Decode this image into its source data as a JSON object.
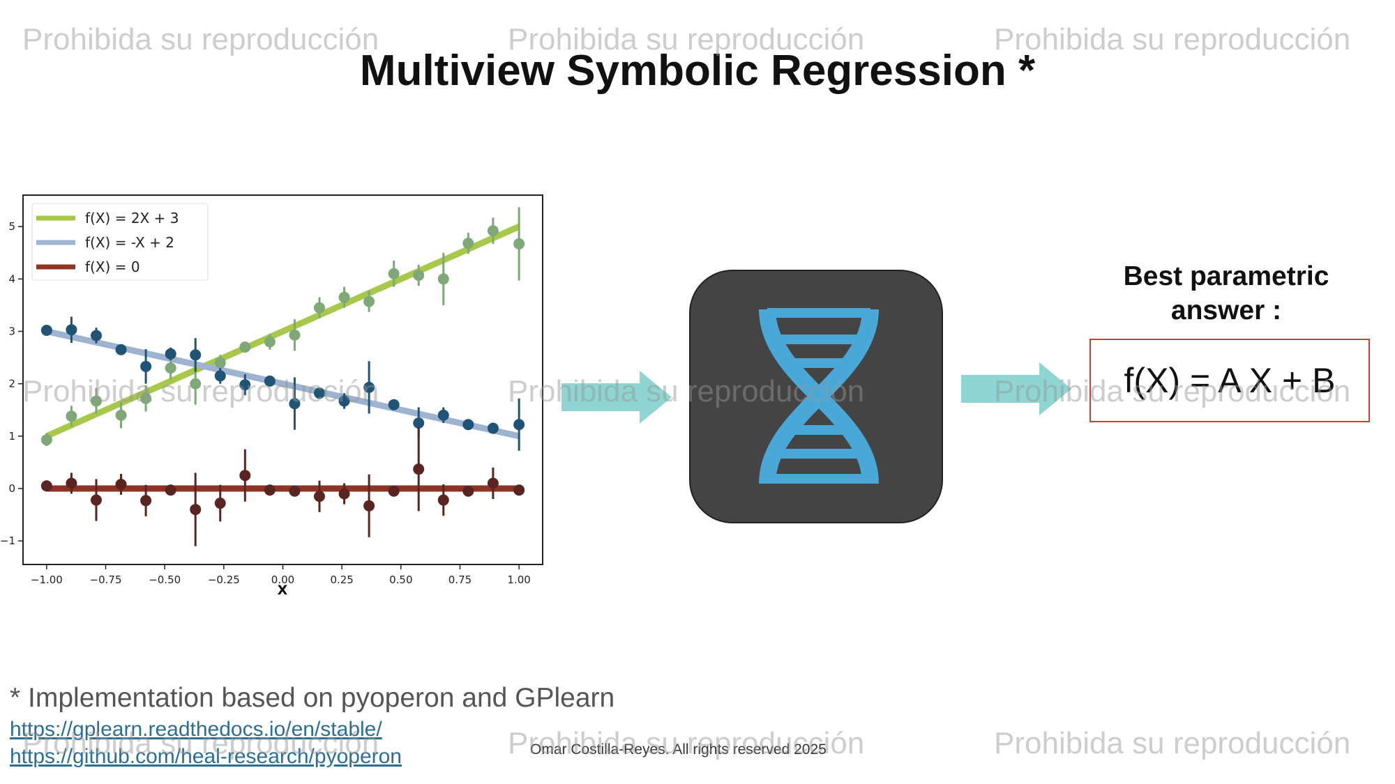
{
  "title": "Multiview Symbolic Regression *",
  "watermark": "Prohibida su reproducción",
  "chart_data": {
    "type": "line",
    "xlabel": "X",
    "ylabel": "",
    "xlim": [
      -1.1,
      1.1
    ],
    "ylim": [
      -1.45,
      5.6
    ],
    "xticks": [
      "−1.00",
      "−0.75",
      "−0.50",
      "−0.25",
      "0.00",
      "0.25",
      "0.50",
      "0.75",
      "1.00"
    ],
    "yticks": [
      "−1",
      "0",
      "1",
      "2",
      "3",
      "4",
      "5"
    ],
    "legend_position": "top-left",
    "series": [
      {
        "name": "f(X) = 2X + 3",
        "color": "#a8c84a",
        "point_color": "#7fa878",
        "line": [
          [
            -1,
            1
          ],
          [
            1,
            5
          ]
        ],
        "points": [
          {
            "x": -1.0,
            "y": 0.93,
            "err": 0.12
          },
          {
            "x": -0.895,
            "y": 1.38,
            "err": 0.2
          },
          {
            "x": -0.79,
            "y": 1.67,
            "err": 0.25
          },
          {
            "x": -0.685,
            "y": 1.4,
            "err": 0.25
          },
          {
            "x": -0.58,
            "y": 1.72,
            "err": 0.25
          },
          {
            "x": -0.475,
            "y": 2.3,
            "err": 0.22
          },
          {
            "x": -0.37,
            "y": 2.0,
            "err": 0.4
          },
          {
            "x": -0.265,
            "y": 2.4,
            "err": 0.15
          },
          {
            "x": -0.16,
            "y": 2.7,
            "err": 0.1
          },
          {
            "x": -0.055,
            "y": 2.8,
            "err": 0.15
          },
          {
            "x": 0.05,
            "y": 2.93,
            "err": 0.3
          },
          {
            "x": 0.155,
            "y": 3.45,
            "err": 0.2
          },
          {
            "x": 0.26,
            "y": 3.65,
            "err": 0.2
          },
          {
            "x": 0.365,
            "y": 3.57,
            "err": 0.2
          },
          {
            "x": 0.47,
            "y": 4.1,
            "err": 0.25
          },
          {
            "x": 0.575,
            "y": 4.07,
            "err": 0.2
          },
          {
            "x": 0.68,
            "y": 4.0,
            "err": 0.5
          },
          {
            "x": 0.785,
            "y": 4.68,
            "err": 0.2
          },
          {
            "x": 0.89,
            "y": 4.92,
            "err": 0.25
          },
          {
            "x": 1.0,
            "y": 4.67,
            "err": 0.7
          }
        ]
      },
      {
        "name": "f(X) = -X + 2",
        "color": "#9db3cf",
        "point_color": "#1f5477",
        "line": [
          [
            -1,
            3
          ],
          [
            1,
            1
          ]
        ],
        "points": [
          {
            "x": -1.0,
            "y": 3.02,
            "err": 0.08
          },
          {
            "x": -0.895,
            "y": 3.03,
            "err": 0.25
          },
          {
            "x": -0.79,
            "y": 2.92,
            "err": 0.15
          },
          {
            "x": -0.685,
            "y": 2.65,
            "err": 0.1
          },
          {
            "x": -0.58,
            "y": 2.33,
            "err": 0.33
          },
          {
            "x": -0.475,
            "y": 2.57,
            "err": 0.12
          },
          {
            "x": -0.37,
            "y": 2.55,
            "err": 0.32
          },
          {
            "x": -0.265,
            "y": 2.15,
            "err": 0.15
          },
          {
            "x": -0.16,
            "y": 1.98,
            "err": 0.2
          },
          {
            "x": -0.055,
            "y": 2.05,
            "err": 0.1
          },
          {
            "x": 0.05,
            "y": 1.62,
            "err": 0.5
          },
          {
            "x": 0.155,
            "y": 1.82,
            "err": 0.1
          },
          {
            "x": 0.26,
            "y": 1.67,
            "err": 0.15
          },
          {
            "x": 0.365,
            "y": 1.93,
            "err": 0.5
          },
          {
            "x": 0.47,
            "y": 1.6,
            "err": 0.1
          },
          {
            "x": 0.575,
            "y": 1.25,
            "err": 0.3
          },
          {
            "x": 0.68,
            "y": 1.4,
            "err": 0.15
          },
          {
            "x": 0.785,
            "y": 1.22,
            "err": 0.1
          },
          {
            "x": 0.89,
            "y": 1.15,
            "err": 0.08
          },
          {
            "x": 1.0,
            "y": 1.22,
            "err": 0.5
          }
        ]
      },
      {
        "name": "f(X) = 0",
        "color": "#8e3424",
        "point_color": "#5a2520",
        "line": [
          [
            -1,
            0
          ],
          [
            1,
            0
          ]
        ],
        "points": [
          {
            "x": -1.0,
            "y": 0.05,
            "err": 0.1
          },
          {
            "x": -0.895,
            "y": 0.1,
            "err": 0.2
          },
          {
            "x": -0.79,
            "y": -0.22,
            "err": 0.4
          },
          {
            "x": -0.685,
            "y": 0.08,
            "err": 0.2
          },
          {
            "x": -0.58,
            "y": -0.23,
            "err": 0.3
          },
          {
            "x": -0.475,
            "y": -0.03,
            "err": 0.1
          },
          {
            "x": -0.37,
            "y": -0.4,
            "err": 0.7
          },
          {
            "x": -0.265,
            "y": -0.28,
            "err": 0.35
          },
          {
            "x": -0.16,
            "y": 0.25,
            "err": 0.5
          },
          {
            "x": -0.055,
            "y": -0.03,
            "err": 0.1
          },
          {
            "x": 0.05,
            "y": -0.05,
            "err": 0.1
          },
          {
            "x": 0.155,
            "y": -0.15,
            "err": 0.3
          },
          {
            "x": 0.26,
            "y": -0.1,
            "err": 0.2
          },
          {
            "x": 0.365,
            "y": -0.33,
            "err": 0.6
          },
          {
            "x": 0.47,
            "y": -0.05,
            "err": 0.1
          },
          {
            "x": 0.575,
            "y": 0.37,
            "err": 0.8
          },
          {
            "x": 0.68,
            "y": -0.22,
            "err": 0.3
          },
          {
            "x": 0.785,
            "y": -0.05,
            "err": 0.1
          },
          {
            "x": 0.89,
            "y": 0.1,
            "err": 0.3
          },
          {
            "x": 1.0,
            "y": -0.03,
            "err": 0.1
          }
        ]
      }
    ]
  },
  "answer": {
    "heading_line1": "Best parametric",
    "heading_line2": "answer :",
    "formula": "f(X) = A X + B"
  },
  "footnote": "* Implementation based on pyoperon and GPlearn",
  "links": [
    "https://gplearn.readthedocs.io/en/stable/",
    "https://github.com/heal-research/pyoperon"
  ],
  "copyright": "Omar Costilla-Reyes. All rights reserved 2025",
  "colors": {
    "arrow": "#8fd6d3",
    "dna_blue": "#4aa8d8",
    "dna_box": "#444444",
    "answer_border": "#c9403a"
  },
  "icons": {
    "process": "dna-icon",
    "flow": "arrow-right-icon"
  }
}
